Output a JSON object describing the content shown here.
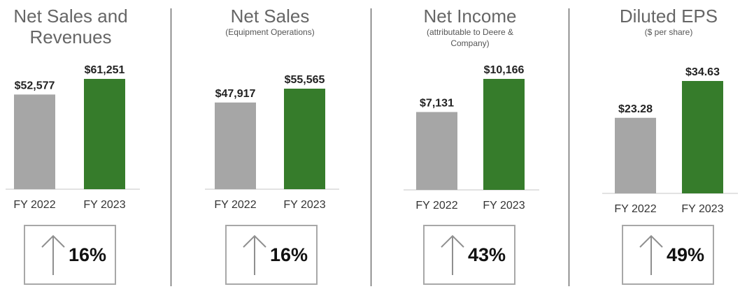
{
  "colors": {
    "prior": "#a6a6a6",
    "current": "#367c2b",
    "label": "#222222",
    "axis": "#d9d9d9"
  },
  "chart_data": [
    {
      "type": "bar",
      "title": "Net Sales and Revenues",
      "subtitle": "",
      "categories": [
        "FY 2022",
        "FY 2023"
      ],
      "values": [
        52577,
        61251
      ],
      "data_labels": [
        "$52,577",
        "$61,251"
      ],
      "change": "16%",
      "change_icon": "up-arrow-icon"
    },
    {
      "type": "bar",
      "title": "Net Sales",
      "subtitle": "(Equipment Operations)",
      "categories": [
        "FY 2022",
        "FY 2023"
      ],
      "values": [
        47917,
        55565
      ],
      "data_labels": [
        "$47,917",
        "$55,565"
      ],
      "change": "16%",
      "change_icon": "up-arrow-icon"
    },
    {
      "type": "bar",
      "title": "Net Income",
      "subtitle": "(attributable to Deere & Company)",
      "categories": [
        "FY 2022",
        "FY 2023"
      ],
      "values": [
        7131,
        10166
      ],
      "data_labels": [
        "$7,131",
        "$10,166"
      ],
      "change": "43%",
      "change_icon": "up-arrow-icon"
    },
    {
      "type": "bar",
      "title": "Diluted EPS",
      "subtitle": "($ per share)",
      "categories": [
        "FY 2022",
        "FY 2023"
      ],
      "values": [
        23.28,
        34.63
      ],
      "data_labels": [
        "$23.28",
        "$34.63"
      ],
      "change": "49%",
      "change_icon": "up-arrow-icon"
    }
  ]
}
